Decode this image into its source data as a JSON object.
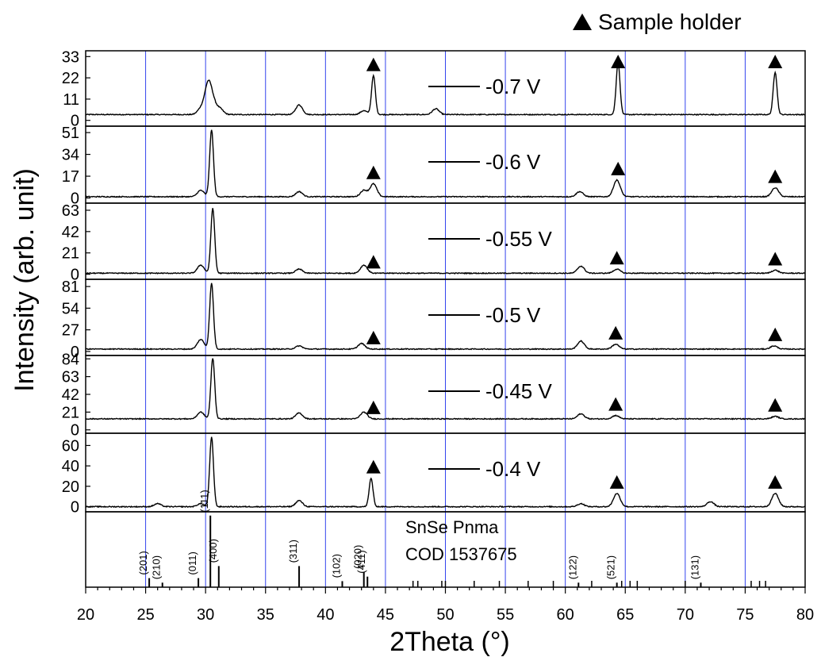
{
  "chart_data": {
    "type": "line",
    "xlabel": "2Theta (°)",
    "ylabel": "Intensity (arb. unit)",
    "xlim": [
      20,
      80
    ],
    "x_ticks": [
      20,
      25,
      30,
      35,
      40,
      45,
      50,
      55,
      60,
      65,
      70,
      75,
      80
    ],
    "vertical_gridlines": [
      25,
      30,
      35,
      40,
      45,
      50,
      55,
      60,
      65,
      70,
      75
    ],
    "gridline_color": "#3344ee",
    "line_color": "#000000",
    "legend_marker_label": "Sample holder",
    "panels": [
      {
        "label": "-0.7 V",
        "y_ticks": [
          "33",
          "22",
          "11",
          "0"
        ],
        "ylim": [
          -3,
          36
        ],
        "baseline": 3,
        "peaks": [
          [
            29.6,
            3
          ],
          [
            30.2,
            15
          ],
          [
            30.6,
            6
          ],
          [
            31.2,
            3
          ],
          [
            37.8,
            5
          ],
          [
            43.2,
            2
          ],
          [
            44.0,
            20
          ],
          [
            49.2,
            3
          ],
          [
            64.4,
            27
          ],
          [
            77.5,
            22
          ]
        ],
        "markers": [
          44.0,
          64.4,
          77.5
        ]
      },
      {
        "label": "-0.6 V",
        "y_ticks": [
          "51",
          "34",
          "17",
          "0"
        ],
        "ylim": [
          -4,
          56
        ],
        "baseline": 1,
        "peaks": [
          [
            29.6,
            5
          ],
          [
            30.5,
            52
          ],
          [
            37.8,
            4
          ],
          [
            43.2,
            5
          ],
          [
            44.0,
            10
          ],
          [
            61.2,
            4
          ],
          [
            64.3,
            13
          ],
          [
            77.5,
            7
          ]
        ],
        "markers": [
          44.0,
          64.4,
          77.5
        ]
      },
      {
        "label": "-0.55 V",
        "y_ticks": [
          "63",
          "42",
          "21",
          "0"
        ],
        "ylim": [
          -5,
          70
        ],
        "baseline": 1,
        "peaks": [
          [
            29.6,
            8
          ],
          [
            30.6,
            64
          ],
          [
            37.8,
            4
          ],
          [
            43.2,
            8
          ],
          [
            61.3,
            7
          ],
          [
            64.3,
            4
          ],
          [
            77.5,
            3
          ]
        ],
        "markers": [
          44.0,
          64.3,
          77.5
        ]
      },
      {
        "label": "-0.5 V",
        "y_ticks": [
          "81",
          "54",
          "27",
          "0"
        ],
        "ylim": [
          -5,
          90
        ],
        "baseline": 3,
        "peaks": [
          [
            29.6,
            12
          ],
          [
            30.5,
            82
          ],
          [
            37.8,
            4
          ],
          [
            43.0,
            7
          ],
          [
            61.3,
            10
          ],
          [
            64.2,
            6
          ],
          [
            77.4,
            4
          ]
        ],
        "markers": [
          44.0,
          64.2,
          77.5
        ]
      },
      {
        "label": "-0.45 V",
        "y_ticks": [
          "84",
          "63",
          "42",
          "21",
          "0"
        ],
        "ylim": [
          -4,
          88
        ],
        "baseline": 13,
        "peaks": [
          [
            29.6,
            8
          ],
          [
            30.6,
            72
          ],
          [
            37.8,
            7
          ],
          [
            43.2,
            8
          ],
          [
            61.3,
            6
          ],
          [
            64.2,
            4
          ],
          [
            77.5,
            3
          ]
        ],
        "markers": [
          44.0,
          64.2,
          77.5
        ]
      },
      {
        "label": "-0.4 V",
        "y_ticks": [
          "60",
          "40",
          "20",
          "0"
        ],
        "ylim": [
          -5,
          72
        ],
        "baseline": 0,
        "peaks": [
          [
            26.0,
            3
          ],
          [
            29.6,
            3
          ],
          [
            30.5,
            68
          ],
          [
            37.8,
            6
          ],
          [
            43.8,
            28
          ],
          [
            61.3,
            3
          ],
          [
            64.3,
            13
          ],
          [
            72.1,
            5
          ],
          [
            77.5,
            13
          ]
        ],
        "markers": [
          44.0,
          64.3,
          77.5
        ]
      }
    ],
    "reference": {
      "title_line1": "SnSe Pnma",
      "title_line2": "COD 1537675",
      "labeled_lines": [
        {
          "x": 25.3,
          "label": "(201)",
          "h": 0.12
        },
        {
          "x": 26.4,
          "label": "(210)",
          "h": 0.06
        },
        {
          "x": 29.4,
          "label": "(011)",
          "h": 0.12
        },
        {
          "x": 30.4,
          "label": "(111)",
          "h": 0.95
        },
        {
          "x": 31.1,
          "label": "(400)",
          "h": 0.28
        },
        {
          "x": 37.8,
          "label": "(311)",
          "h": 0.28
        },
        {
          "x": 41.4,
          "label": "(102)",
          "h": 0.08
        },
        {
          "x": 43.2,
          "label": "(020)",
          "h": 0.2
        },
        {
          "x": 43.5,
          "label": "(411)",
          "h": 0.14
        },
        {
          "x": 61.1,
          "label": "(122)",
          "h": 0.06
        },
        {
          "x": 64.3,
          "label": "(521)",
          "h": 0.06
        },
        {
          "x": 71.3,
          "label": "(131)",
          "h": 0.06
        }
      ],
      "minor_lines": [
        47.3,
        47.7,
        49.7,
        50.0,
        52.4,
        54.5,
        56.9,
        59.0,
        62.2,
        64.7,
        65.4,
        66.0,
        70.0,
        75.5,
        76.2,
        76.7
      ]
    }
  }
}
